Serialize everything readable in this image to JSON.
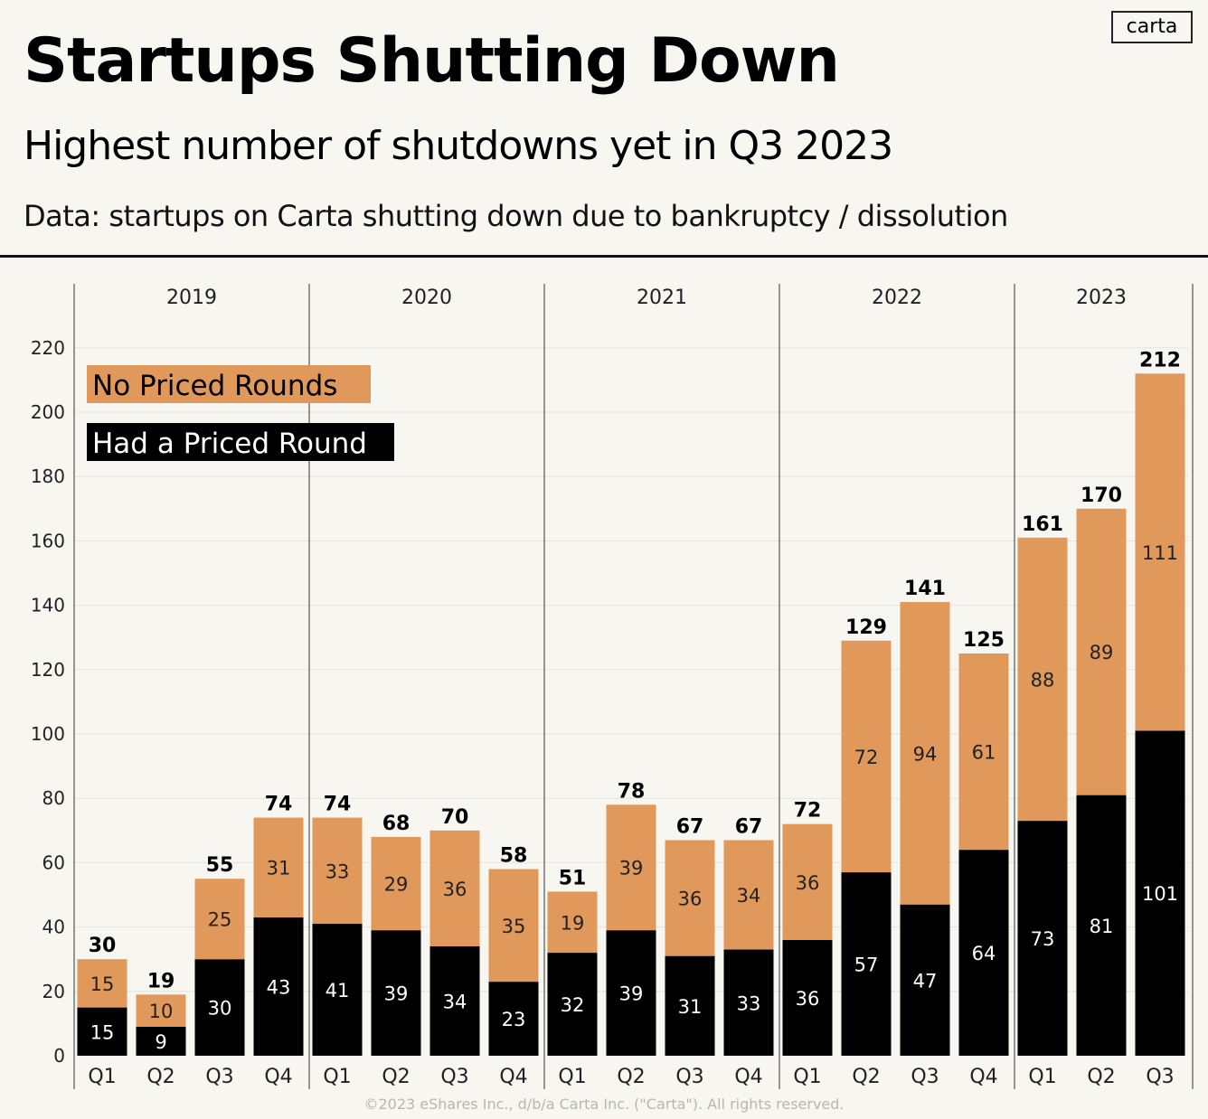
{
  "title": "Startups Shutting Down",
  "subtitle": "Highest number of shutdowns yet in Q3 2023",
  "note": "Data: startups on Carta shutting down due to bankruptcy / dissolution",
  "logo": "carta",
  "footer": "©2023 eShares Inc., d/b/a Carta Inc. (\"Carta\"). All rights reserved.",
  "chart_data": {
    "type": "bar",
    "stacked": true,
    "years": [
      "2019",
      "2020",
      "2021",
      "2022",
      "2023"
    ],
    "categories": [
      "Q1",
      "Q2",
      "Q3",
      "Q4",
      "Q1",
      "Q2",
      "Q3",
      "Q4",
      "Q1",
      "Q2",
      "Q3",
      "Q4",
      "Q1",
      "Q2",
      "Q3",
      "Q4",
      "Q1",
      "Q2",
      "Q3"
    ],
    "category_years": [
      "2019",
      "2019",
      "2019",
      "2019",
      "2020",
      "2020",
      "2020",
      "2020",
      "2021",
      "2021",
      "2021",
      "2021",
      "2022",
      "2022",
      "2022",
      "2022",
      "2023",
      "2023",
      "2023"
    ],
    "series": [
      {
        "name": "Had a Priced Round",
        "color": "#000000",
        "values": [
          15,
          9,
          30,
          43,
          41,
          39,
          34,
          23,
          32,
          39,
          31,
          33,
          36,
          57,
          47,
          64,
          73,
          81,
          101
        ]
      },
      {
        "name": "No Priced Rounds",
        "color": "#e0995b",
        "values": [
          15,
          10,
          25,
          31,
          33,
          29,
          36,
          35,
          19,
          39,
          36,
          34,
          36,
          72,
          94,
          61,
          88,
          89,
          111
        ]
      }
    ],
    "totals": [
      30,
      19,
      55,
      74,
      74,
      68,
      70,
      58,
      51,
      78,
      67,
      67,
      72,
      129,
      141,
      125,
      161,
      170,
      212
    ],
    "yticks": [
      0,
      20,
      40,
      60,
      80,
      100,
      120,
      140,
      160,
      180,
      200,
      220
    ],
    "ylim": [
      0,
      220
    ],
    "grid": true,
    "legend": "top-left"
  }
}
